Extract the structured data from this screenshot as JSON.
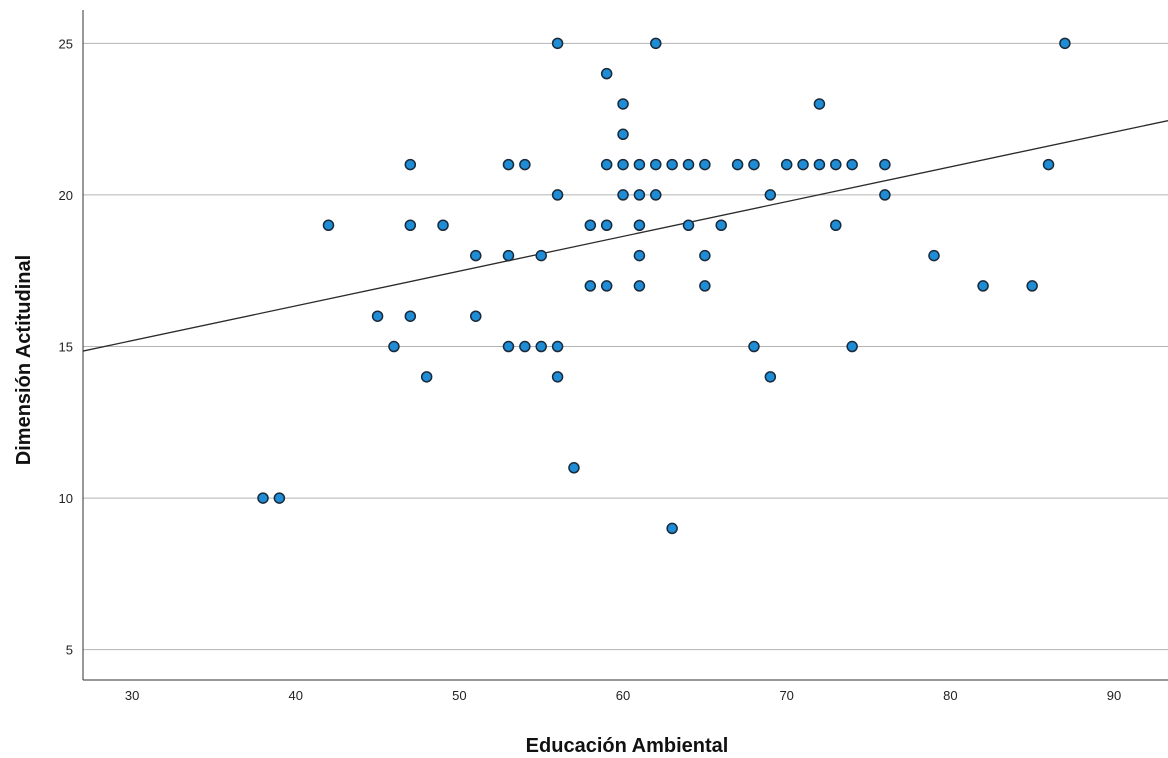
{
  "chart_data": {
    "type": "scatter",
    "title": "",
    "xlabel": "Educación Ambiental",
    "ylabel": "Dimensión Actitudinal",
    "xlim": [
      27,
      93.3
    ],
    "ylim": [
      4,
      26.1
    ],
    "x_ticks": [
      30,
      40,
      50,
      60,
      70,
      80,
      90
    ],
    "y_ticks": [
      5,
      10,
      15,
      20,
      25
    ],
    "grid": "horizontal",
    "point_color": "#1f8dd6",
    "point_edge_color": "#1a2a3a",
    "fit_line": {
      "type": "linear",
      "y_at_xmin": 14.85,
      "y_at_xmax": 22.45
    },
    "points": [
      [
        38,
        10
      ],
      [
        39,
        10
      ],
      [
        42,
        19
      ],
      [
        45,
        16
      ],
      [
        46,
        15
      ],
      [
        47,
        21
      ],
      [
        47,
        19
      ],
      [
        47,
        16
      ],
      [
        48,
        14
      ],
      [
        49,
        19
      ],
      [
        51,
        18
      ],
      [
        51,
        16
      ],
      [
        53,
        21
      ],
      [
        53,
        18
      ],
      [
        53,
        15
      ],
      [
        54,
        21
      ],
      [
        54,
        15
      ],
      [
        55,
        18
      ],
      [
        55,
        15
      ],
      [
        56,
        25
      ],
      [
        56,
        20
      ],
      [
        56,
        15
      ],
      [
        56,
        14
      ],
      [
        57,
        11
      ],
      [
        58,
        19
      ],
      [
        58,
        17
      ],
      [
        59,
        24
      ],
      [
        59,
        21
      ],
      [
        59,
        19
      ],
      [
        59,
        17
      ],
      [
        60,
        23
      ],
      [
        60,
        22
      ],
      [
        60,
        21
      ],
      [
        60,
        20
      ],
      [
        61,
        21
      ],
      [
        61,
        20
      ],
      [
        61,
        19
      ],
      [
        61,
        18
      ],
      [
        61,
        17
      ],
      [
        62,
        25
      ],
      [
        62,
        21
      ],
      [
        62,
        20
      ],
      [
        63,
        21
      ],
      [
        63,
        9
      ],
      [
        64,
        21
      ],
      [
        64,
        19
      ],
      [
        65,
        21
      ],
      [
        65,
        18
      ],
      [
        65,
        17
      ],
      [
        66,
        19
      ],
      [
        67,
        21
      ],
      [
        68,
        21
      ],
      [
        68,
        15
      ],
      [
        69,
        20
      ],
      [
        69,
        14
      ],
      [
        70,
        21
      ],
      [
        71,
        21
      ],
      [
        72,
        23
      ],
      [
        72,
        21
      ],
      [
        73,
        21
      ],
      [
        73,
        19
      ],
      [
        74,
        21
      ],
      [
        74,
        15
      ],
      [
        76,
        21
      ],
      [
        76,
        20
      ],
      [
        79,
        18
      ],
      [
        82,
        17
      ],
      [
        85,
        17
      ],
      [
        86,
        21
      ],
      [
        87,
        25
      ]
    ]
  }
}
